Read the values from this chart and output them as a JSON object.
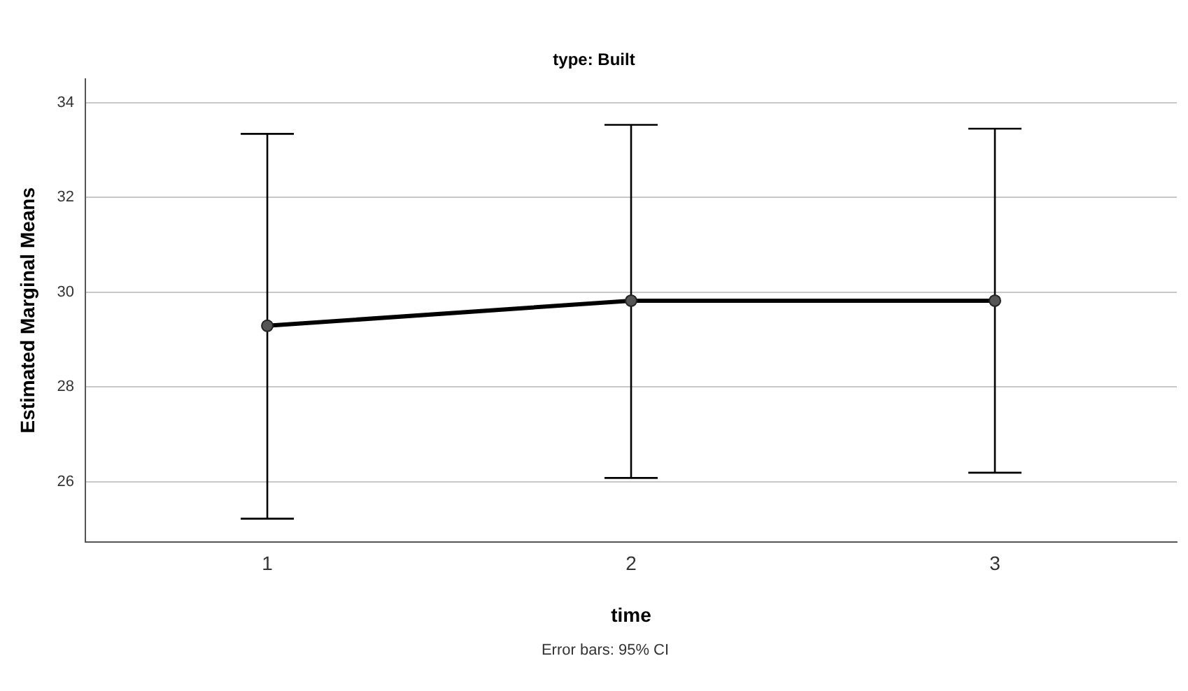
{
  "chart_data": {
    "type": "line",
    "subtitle": "type: Built",
    "xlabel": "time",
    "ylabel": "Estimated Marginal Means",
    "annotations": [
      "Error bars: 95% CI"
    ],
    "categories": [
      "1",
      "2",
      "3"
    ],
    "values": [
      29.29,
      29.82,
      29.82
    ],
    "color": "#000000",
    "errors": [
      [
        25.22,
        33.34
      ],
      [
        26.08,
        33.53
      ],
      [
        26.19,
        33.45
      ]
    ],
    "ylim": [
      24.73,
      34.5
    ],
    "yticks": [
      26,
      28,
      30,
      32,
      34
    ],
    "grid": "y",
    "marker": "circle",
    "line_style": "solid",
    "legend": false
  }
}
